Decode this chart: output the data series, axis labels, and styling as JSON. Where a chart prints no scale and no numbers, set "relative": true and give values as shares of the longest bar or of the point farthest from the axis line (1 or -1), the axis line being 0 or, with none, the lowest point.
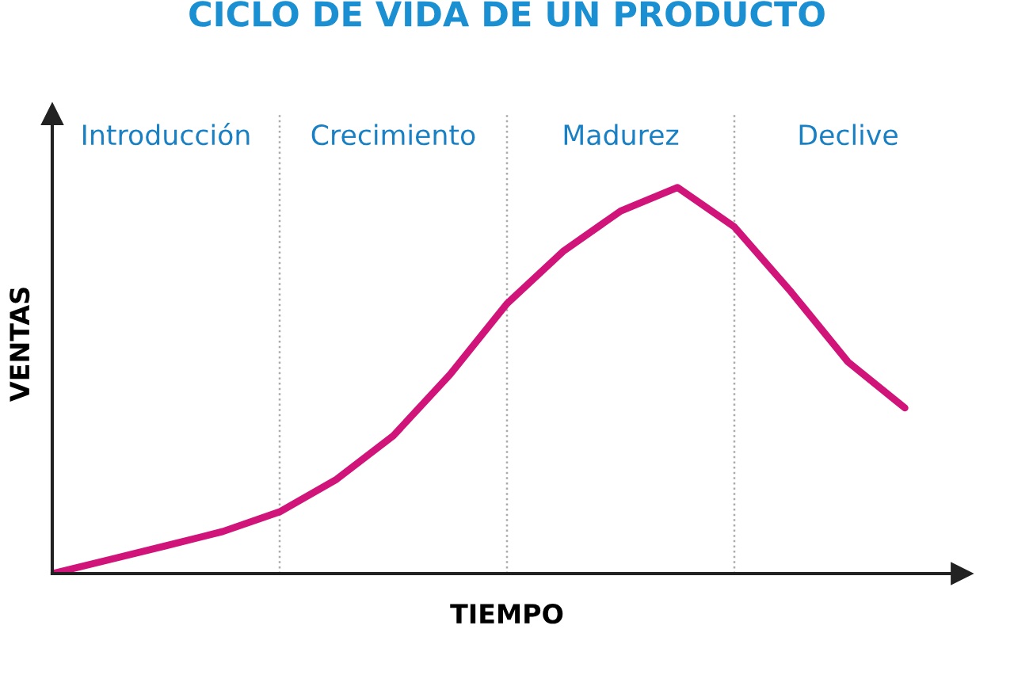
{
  "chart_data": {
    "type": "line",
    "title": "CICLO DE VIDA DE UN PRODUCTO",
    "xlabel": "TIEMPO",
    "ylabel": "VENTAS",
    "relative": true,
    "grid": "x",
    "categories": [
      null,
      null,
      null,
      null,
      null,
      null,
      null,
      null,
      null,
      null,
      null,
      null,
      null,
      null,
      null,
      null
    ],
    "series": [
      {
        "color": "#d0147a",
        "values": [
          0,
          0.036,
          0.072,
          0.109,
          0.16,
          0.244,
          0.357,
          0.516,
          0.699,
          0.836,
          0.939,
          1,
          0.898,
          0.729,
          0.548,
          0.429
        ]
      }
    ],
    "annotations": [
      "Introducción",
      "Crecimiento",
      "Madurez",
      "Declive"
    ]
  }
}
